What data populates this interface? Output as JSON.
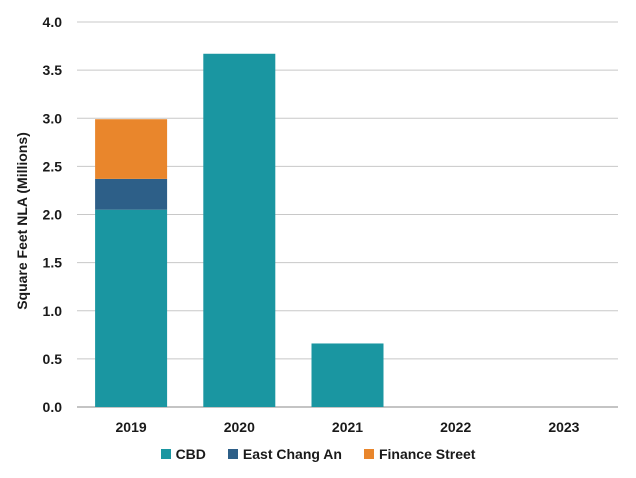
{
  "chart_data": {
    "type": "bar",
    "stacked": true,
    "categories": [
      "2019",
      "2020",
      "2021",
      "2022",
      "2023"
    ],
    "series": [
      {
        "name": "CBD",
        "values": [
          2.05,
          3.67,
          0.66,
          0,
          0
        ],
        "color": "#1a96a1"
      },
      {
        "name": "East Chang An",
        "values": [
          0.32,
          0,
          0,
          0,
          0
        ],
        "color": "#2d5f88"
      },
      {
        "name": "Finance Street",
        "values": [
          0.62,
          0,
          0,
          0,
          0
        ],
        "color": "#e9862c"
      }
    ],
    "title": "",
    "xlabel": "",
    "ylabel": "Square Feet NLA (Millions)",
    "ylim": [
      0,
      4.0
    ],
    "yticks": [
      "0.0",
      "0.5",
      "1.0",
      "1.5",
      "2.0",
      "2.5",
      "3.0",
      "3.5",
      "4.0"
    ],
    "grid": true,
    "legend": "bottom-center"
  }
}
